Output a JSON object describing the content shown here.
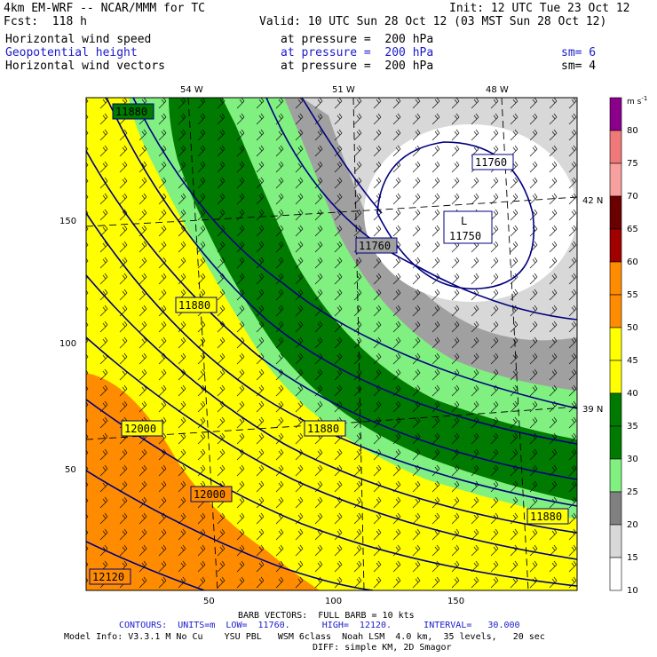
{
  "header": {
    "model": "4km EM-WRF -- NCAR/MMM for TC",
    "init": "Init: 12 UTC Tue 23 Oct 12",
    "fcst": "Fcst:  118 h",
    "valid": "Valid: 10 UTC Sun 28 Oct 12 (03 MST Sun 28 Oct 12)",
    "fields": [
      {
        "name": "Horizontal wind speed",
        "level": "at pressure =  200 hPa",
        "extra": ""
      },
      {
        "name": "Geopotential height",
        "level": "at pressure =  200 hPa",
        "extra": "sm= 6"
      },
      {
        "name": "Horizontal wind vectors",
        "level": "at pressure =  200 hPa",
        "extra": "sm= 4"
      }
    ]
  },
  "map": {
    "lon_labels": [
      "54 W",
      "51 W",
      "48 W"
    ],
    "lat_labels": [
      "42 N",
      "39 N"
    ],
    "y_ticks": [
      "150",
      "100",
      "50"
    ],
    "x_ticks": [
      "50",
      "100",
      "150"
    ],
    "contour_labels": [
      "11880",
      "11760",
      "11760",
      "L",
      "11750",
      "11880",
      "12000",
      "11880",
      "12000",
      "11880",
      "12120"
    ],
    "colors": {
      "white": "#ffffff",
      "lightgray": "#d8d8d8",
      "gray": "#a0a0a0",
      "lightgreen": "#80f080",
      "darkgreen": "#007a00",
      "yellow": "#ffff00",
      "orange": "#ff8c00",
      "contour": "#000080"
    }
  },
  "colorbar": {
    "unit": "m s",
    "unit_sup": "-1",
    "labels": [
      "80",
      "75",
      "70",
      "65",
      "60",
      "55",
      "50",
      "45",
      "40",
      "35",
      "30",
      "25",
      "20",
      "15",
      "10"
    ],
    "colors": [
      "#8b008b",
      "#f07878",
      "#f8a0a0",
      "#6b0000",
      "#a00000",
      "#ff8c00",
      "#ff8c00",
      "#ffff00",
      "#ffff00",
      "#007a00",
      "#007a00",
      "#80f080",
      "#808080",
      "#d8d8d8",
      "#ffffff"
    ]
  },
  "footer": {
    "barb": "BARB VECTORS:  FULL BARB = 10 kts",
    "contours": "CONTOURS:  UNITS=m  LOW=  11760.      HIGH=  12120.      INTERVAL=   30.000",
    "model_info": "Model Info: V3.3.1 M No Cu    YSU PBL   WSM 6class  Noah LSM  4.0 km,  35 levels,   20 sec",
    "diff": "DIFF: simple KM, 2D Smagor"
  }
}
